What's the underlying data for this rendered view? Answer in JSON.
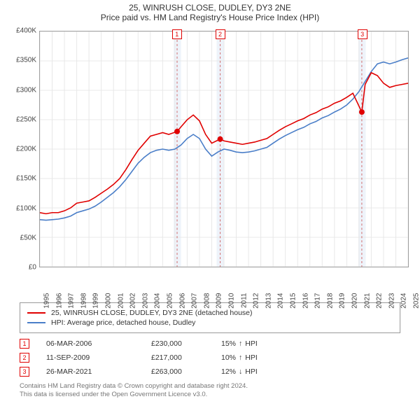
{
  "title": {
    "main": "25, WINRUSH CLOSE, DUDLEY, DY3 2NE",
    "sub": "Price paid vs. HM Land Registry's House Price Index (HPI)"
  },
  "chart": {
    "type": "line",
    "background_color": "#ffffff",
    "border_color": "#a0a0a0",
    "grid_color": "#e8e8e8",
    "label_fontsize": 10,
    "ylim": [
      0,
      400000
    ],
    "ytick_step": 50000,
    "ytick_labels": [
      "£0",
      "£50K",
      "£100K",
      "£150K",
      "£200K",
      "£250K",
      "£300K",
      "£350K",
      "£400K"
    ],
    "xlim": [
      1995,
      2025
    ],
    "xtick_labels": [
      "1995",
      "1996",
      "1997",
      "1998",
      "1999",
      "2000",
      "2001",
      "2002",
      "2003",
      "2004",
      "2005",
      "2006",
      "2007",
      "2008",
      "2009",
      "2010",
      "2011",
      "2012",
      "2013",
      "2014",
      "2015",
      "2016",
      "2017",
      "2018",
      "2019",
      "2020",
      "2021",
      "2022",
      "2023",
      "2024",
      "2025"
    ],
    "series": [
      {
        "name": "25, WINRUSH CLOSE, DUDLEY, DY3 2NE (detached house)",
        "color": "#e00000",
        "line_width": 1.6,
        "points": [
          [
            1995,
            92000
          ],
          [
            1995.5,
            90000
          ],
          [
            1996,
            92000
          ],
          [
            1996.5,
            92000
          ],
          [
            1997,
            95000
          ],
          [
            1997.5,
            100000
          ],
          [
            1998,
            108000
          ],
          [
            1998.5,
            110000
          ],
          [
            1999,
            112000
          ],
          [
            1999.5,
            118000
          ],
          [
            2000,
            125000
          ],
          [
            2000.5,
            132000
          ],
          [
            2001,
            140000
          ],
          [
            2001.5,
            150000
          ],
          [
            2002,
            165000
          ],
          [
            2002.5,
            182000
          ],
          [
            2003,
            198000
          ],
          [
            2003.5,
            210000
          ],
          [
            2004,
            222000
          ],
          [
            2004.5,
            225000
          ],
          [
            2005,
            228000
          ],
          [
            2005.5,
            225000
          ],
          [
            2006.18,
            230000
          ],
          [
            2006.5,
            238000
          ],
          [
            2007,
            250000
          ],
          [
            2007.5,
            258000
          ],
          [
            2008,
            248000
          ],
          [
            2008.5,
            225000
          ],
          [
            2009,
            210000
          ],
          [
            2009.69,
            217000
          ],
          [
            2010,
            214000
          ],
          [
            2010.5,
            212000
          ],
          [
            2011,
            210000
          ],
          [
            2011.5,
            208000
          ],
          [
            2012,
            210000
          ],
          [
            2012.5,
            212000
          ],
          [
            2013,
            215000
          ],
          [
            2013.5,
            218000
          ],
          [
            2014,
            225000
          ],
          [
            2014.5,
            232000
          ],
          [
            2015,
            238000
          ],
          [
            2015.5,
            243000
          ],
          [
            2016,
            248000
          ],
          [
            2016.5,
            252000
          ],
          [
            2017,
            258000
          ],
          [
            2017.5,
            262000
          ],
          [
            2018,
            268000
          ],
          [
            2018.5,
            272000
          ],
          [
            2019,
            278000
          ],
          [
            2019.5,
            282000
          ],
          [
            2020,
            288000
          ],
          [
            2020.5,
            295000
          ],
          [
            2021.23,
            263000
          ],
          [
            2021.5,
            310000
          ],
          [
            2022,
            330000
          ],
          [
            2022.5,
            325000
          ],
          [
            2023,
            312000
          ],
          [
            2023.5,
            305000
          ],
          [
            2024,
            308000
          ],
          [
            2024.5,
            310000
          ],
          [
            2025,
            312000
          ]
        ]
      },
      {
        "name": "HPI: Average price, detached house, Dudley",
        "color": "#4a7ec8",
        "line_width": 1.6,
        "points": [
          [
            1995,
            80000
          ],
          [
            1995.5,
            79000
          ],
          [
            1996,
            80000
          ],
          [
            1996.5,
            81000
          ],
          [
            1997,
            83000
          ],
          [
            1997.5,
            86000
          ],
          [
            1998,
            92000
          ],
          [
            1998.5,
            95000
          ],
          [
            1999,
            98000
          ],
          [
            1999.5,
            103000
          ],
          [
            2000,
            110000
          ],
          [
            2000.5,
            118000
          ],
          [
            2001,
            126000
          ],
          [
            2001.5,
            136000
          ],
          [
            2002,
            148000
          ],
          [
            2002.5,
            162000
          ],
          [
            2003,
            176000
          ],
          [
            2003.5,
            186000
          ],
          [
            2004,
            194000
          ],
          [
            2004.5,
            198000
          ],
          [
            2005,
            200000
          ],
          [
            2005.5,
            198000
          ],
          [
            2006,
            200000
          ],
          [
            2006.5,
            207000
          ],
          [
            2007,
            218000
          ],
          [
            2007.5,
            225000
          ],
          [
            2008,
            218000
          ],
          [
            2008.5,
            200000
          ],
          [
            2009,
            188000
          ],
          [
            2009.5,
            195000
          ],
          [
            2010,
            200000
          ],
          [
            2010.5,
            198000
          ],
          [
            2011,
            195000
          ],
          [
            2011.5,
            194000
          ],
          [
            2012,
            195000
          ],
          [
            2012.5,
            197000
          ],
          [
            2013,
            200000
          ],
          [
            2013.5,
            203000
          ],
          [
            2014,
            210000
          ],
          [
            2014.5,
            217000
          ],
          [
            2015,
            223000
          ],
          [
            2015.5,
            228000
          ],
          [
            2016,
            233000
          ],
          [
            2016.5,
            237000
          ],
          [
            2017,
            243000
          ],
          [
            2017.5,
            247000
          ],
          [
            2018,
            253000
          ],
          [
            2018.5,
            257000
          ],
          [
            2019,
            263000
          ],
          [
            2019.5,
            268000
          ],
          [
            2020,
            275000
          ],
          [
            2020.5,
            285000
          ],
          [
            2021,
            298000
          ],
          [
            2021.5,
            315000
          ],
          [
            2022,
            332000
          ],
          [
            2022.5,
            345000
          ],
          [
            2023,
            348000
          ],
          [
            2023.5,
            345000
          ],
          [
            2024,
            348000
          ],
          [
            2024.5,
            352000
          ],
          [
            2025,
            355000
          ]
        ]
      }
    ],
    "event_markers": [
      {
        "label": "1",
        "year": 2006.18,
        "price": 230000,
        "highlight_band": [
          2005.9,
          2006.5
        ],
        "band_color": "#eef3fa"
      },
      {
        "label": "2",
        "year": 2009.69,
        "price": 217000,
        "highlight_band": [
          2009.4,
          2010.0
        ],
        "band_color": "#eef3fa"
      },
      {
        "label": "3",
        "year": 2021.23,
        "price": 263000,
        "highlight_band": [
          2020.95,
          2021.55
        ],
        "band_color": "#eef3fa"
      }
    ],
    "marker_line_color": "#d06a6a",
    "marker_dot_color": "#e00000",
    "marker_dot_radius": 4
  },
  "legend": {
    "items": [
      {
        "color": "#e00000",
        "label": "25, WINRUSH CLOSE, DUDLEY, DY3 2NE (detached house)"
      },
      {
        "color": "#4a7ec8",
        "label": "HPI: Average price, detached house, Dudley"
      }
    ]
  },
  "sales": [
    {
      "marker": "1",
      "date": "06-MAR-2006",
      "price": "£230,000",
      "comparison": "15%",
      "arrow": "↑",
      "comp_label": "HPI"
    },
    {
      "marker": "2",
      "date": "11-SEP-2009",
      "price": "£217,000",
      "comparison": "10%",
      "arrow": "↑",
      "comp_label": "HPI"
    },
    {
      "marker": "3",
      "date": "26-MAR-2021",
      "price": "£263,000",
      "comparison": "12%",
      "arrow": "↓",
      "comp_label": "HPI"
    }
  ],
  "footnote": {
    "line1": "Contains HM Land Registry data © Crown copyright and database right 2024.",
    "line2": "This data is licensed under the Open Government Licence v3.0."
  }
}
